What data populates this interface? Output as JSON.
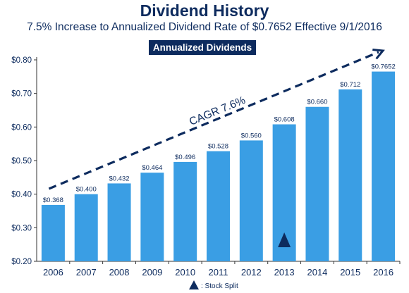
{
  "chart_data": {
    "type": "bar",
    "title": "Dividend History",
    "subtitle": "7.5% Increase to Annualized Dividend Rate of $0.7652 Effective 9/1/2016",
    "series_label": "Annualized Dividends",
    "categories": [
      "2006",
      "2007",
      "2008",
      "2009",
      "2010",
      "2011",
      "2012",
      "2013",
      "2014",
      "2015",
      "2016"
    ],
    "values": [
      0.368,
      0.4,
      0.432,
      0.464,
      0.496,
      0.528,
      0.56,
      0.608,
      0.66,
      0.712,
      0.7652
    ],
    "data_labels": [
      "$0.368",
      "$0.400",
      "$0.432",
      "$0.464",
      "$0.496",
      "$0.528",
      "$0.560",
      "$0.608",
      "$0.660",
      "$0.712",
      "$0.7652"
    ],
    "ylim": [
      0.2,
      0.8
    ],
    "yticks": [
      0.2,
      0.3,
      0.4,
      0.5,
      0.6,
      0.7,
      0.8
    ],
    "ytick_labels": [
      "$0.20",
      "$0.30",
      "$0.40",
      "$0.50",
      "$0.60",
      "$0.70",
      "$0.80"
    ],
    "grid": false,
    "trend_label": "CAGR 7.6%",
    "stock_split_category": "2013",
    "legend_label": ": Stock Split",
    "colors": {
      "bar": "#3a9ee4",
      "navy": "#0d2b5e"
    }
  }
}
